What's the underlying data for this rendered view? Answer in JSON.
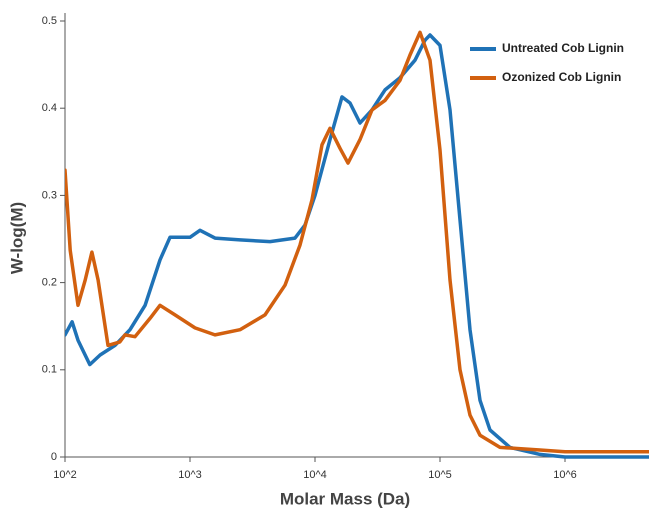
{
  "chart_data": {
    "type": "line",
    "xlabel": "Molar Mass (Da)",
    "ylabel": "W-log(M)",
    "xscale": "log",
    "xlim": [
      100,
      4700000
    ],
    "ylim": [
      0,
      0.5
    ],
    "xticks": [
      {
        "value": 100,
        "label": "10^2"
      },
      {
        "value": 1000,
        "label": "10^3"
      },
      {
        "value": 10000,
        "label": "10^4"
      },
      {
        "value": 100000,
        "label": "10^5"
      },
      {
        "value": 1000000,
        "label": "10^6"
      }
    ],
    "yticks": [
      0,
      0.1,
      0.2,
      0.3,
      0.4,
      0.5
    ],
    "legend": "upper right",
    "series": [
      {
        "name": "Untreated Cob Lignin",
        "color": "#1f72b6",
        "x": [
          100,
          114,
          127,
          158,
          191,
          251,
          331,
          437,
          575,
          692,
          1000,
          1202,
          1585,
          2512,
          4365,
          6918,
          8318,
          10000,
          13183,
          16444,
          19055,
          22909,
          28576,
          36308,
          47863,
          63096,
          75858,
          83176,
          100000,
          120226,
          144544,
          173780,
          208930,
          251189,
          363078,
          630957,
          1000000,
          4700000
        ],
        "values": [
          0.14,
          0.155,
          0.134,
          0.106,
          0.117,
          0.128,
          0.146,
          0.174,
          0.226,
          0.252,
          0.252,
          0.26,
          0.251,
          0.249,
          0.247,
          0.251,
          0.266,
          0.3,
          0.364,
          0.413,
          0.406,
          0.383,
          0.398,
          0.421,
          0.435,
          0.455,
          0.478,
          0.484,
          0.472,
          0.398,
          0.272,
          0.146,
          0.065,
          0.031,
          0.011,
          0.003,
          0,
          0
        ]
      },
      {
        "name": "Ozonized Cob Lignin",
        "color": "#d2600f",
        "x": [
          100,
          110,
          127,
          145,
          164,
          184,
          221,
          275,
          302,
          363,
          479,
          575,
          759,
          1096,
          1585,
          2512,
          3981,
          5754,
          7586,
          9462,
          11376,
          13183,
          15849,
          18365,
          22909,
          28576,
          36308,
          47863,
          57544,
          69183,
          83176,
          100000,
          120226,
          144544,
          173780,
          208930,
          301995,
          630957,
          1000000,
          4700000
        ],
        "values": [
          0.329,
          0.237,
          0.174,
          0.203,
          0.235,
          0.203,
          0.128,
          0.132,
          0.14,
          0.138,
          0.159,
          0.174,
          0.163,
          0.148,
          0.14,
          0.146,
          0.163,
          0.197,
          0.243,
          0.295,
          0.358,
          0.377,
          0.354,
          0.337,
          0.364,
          0.398,
          0.409,
          0.432,
          0.461,
          0.487,
          0.455,
          0.352,
          0.203,
          0.1,
          0.048,
          0.025,
          0.011,
          0.008,
          0.006,
          0.006
        ]
      }
    ]
  }
}
